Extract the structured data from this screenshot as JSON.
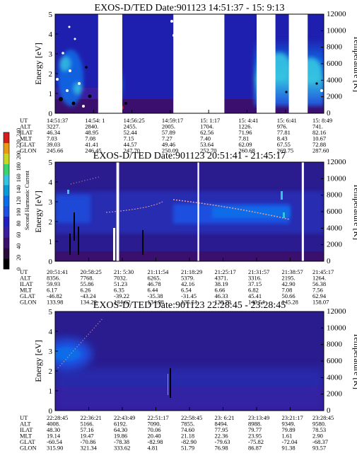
{
  "colors": {
    "background": "#1f1faf",
    "deep": "#3a0f6e",
    "spot_red": "#c81e1e",
    "gap": "#ffffff",
    "glow": "#0d6de8",
    "glow_cyan": "#35c4e0",
    "green": "#39d46b",
    "line": "#e8a0a0"
  },
  "colorbar": {
    "label": "Second Harmonic Current",
    "ticks": [
      "0",
      "20",
      "40",
      "60",
      "80",
      "100",
      "120",
      "140",
      "160",
      "180",
      "200",
      "220",
      "240"
    ],
    "colors": [
      "#000000",
      "#2a0a3a",
      "#3a0f6e",
      "#3b1ea0",
      "#2020c0",
      "#1f4fe0",
      "#0d6de8",
      "#0a9ad8",
      "#35c4e0",
      "#39d46b",
      "#c8d820",
      "#e89a10",
      "#d81c1c"
    ]
  },
  "chart_data": [
    {
      "type": "heatmap",
      "title": "EXOS-D/TED  Date:901123  14:51:37 - 15: 9:13",
      "ylabel": "Energy [eV]",
      "ylim": [
        0,
        5
      ],
      "yticks": [
        "0",
        "1",
        "2",
        "3",
        "4",
        "5"
      ],
      "y2label": "Temperature [K]",
      "y2lim": [
        0,
        12000
      ],
      "y2ticks": [
        "0",
        "2000",
        "4000",
        "6000",
        "8000",
        "10000",
        "12000"
      ],
      "time_range": [
        "14:51:37",
        "15:9:13"
      ],
      "gaps": [
        [
          0.16,
          0.25
        ],
        [
          0.44,
          0.63
        ],
        [
          0.75,
          0.82
        ],
        [
          0.87,
          0.94
        ]
      ],
      "ephemeris": {
        "labels": [
          "UT",
          "ALT",
          "ILAT",
          "MLT",
          "GLAT",
          "GLON"
        ],
        "columns": [
          [
            "14:51:37",
            "3227.",
            "46.34",
            "7.03",
            "39.03",
            "245.66"
          ],
          [
            "14:54: 1",
            "2840.",
            "48.95",
            "7.08",
            "41.41",
            "246.45"
          ],
          [
            "14:56:25",
            "2455.",
            "52.44",
            "7.15",
            "44.57",
            "247.70"
          ],
          [
            "14:59:17",
            "2005.",
            "57.89",
            "7.27",
            "49.46",
            "250.09"
          ],
          [
            "15: 1:17",
            "1704.",
            "62.56",
            "7.40",
            "53.64",
            "252.70"
          ],
          [
            "15: 4:41",
            "1226.",
            "71.96",
            "7.81",
            "62.09",
            "260.68"
          ],
          [
            "15: 6:41",
            "976.",
            "77.81",
            "8.43",
            "67.55",
            "269.75"
          ],
          [
            "15: 8:49",
            "741.",
            "82.16",
            "10.67",
            "72.88",
            "287.60"
          ]
        ]
      }
    },
    {
      "type": "heatmap",
      "title": "EXOS-D/TED  Date:901123  20:51:41 - 21:45:17",
      "ylabel": "Energy [eV]",
      "ylim": [
        0,
        5
      ],
      "yticks": [
        "0",
        "1",
        "2",
        "3",
        "4",
        "5"
      ],
      "y2label": "Temperature [K]",
      "y2lim": [
        0,
        12000
      ],
      "y2ticks": [
        "0",
        "2000",
        "4000",
        "6000",
        "8000",
        "10000",
        "12000"
      ],
      "time_range": [
        "20:51:41",
        "21:45:17"
      ],
      "gaps": [
        [
          0.228,
          0.238
        ],
        [
          0.53,
          0.536
        ],
        [
          0.918,
          0.926
        ]
      ],
      "ephemeris": {
        "labels": [
          "UT",
          "ALT",
          "ILAT",
          "MLT",
          "GLAT",
          "GLON"
        ],
        "columns": [
          [
            "20:51:41",
            "8356.",
            "59.93",
            "6.17",
            "-46.82",
            "133.98"
          ],
          [
            "20:58:25",
            "7768.",
            "55.86",
            "6.26",
            "-43.24",
            "134.29"
          ],
          [
            "21: 5:30",
            "7032.",
            "51.23",
            "6.35",
            "-39.22",
            "134.62"
          ],
          [
            "21:11:54",
            "6265.",
            "46.78",
            "6.44",
            "-35.38",
            "134.98"
          ],
          [
            "21:18:29",
            "5379.",
            "42.16",
            "6.54",
            "-31.45",
            "135.51"
          ],
          [
            "21:25:17",
            "4371.",
            "38.19",
            "6.66",
            "46.33",
            "138.79"
          ],
          [
            "21:31:57",
            "3316.",
            "37.15",
            "6.82",
            "45.41",
            "140.54"
          ],
          [
            "21:38:57",
            "2195.",
            "42.90",
            "7.08",
            "50.66",
            "145.28"
          ],
          [
            "21:45:17",
            "1264.",
            "56.38",
            "7.56",
            "62.94",
            "158.07"
          ]
        ]
      }
    },
    {
      "type": "heatmap",
      "title": "EXOS-D/TED  Date:901123  22:28:45 - 23:28:45",
      "ylabel": "Energy [eV]",
      "ylim": [
        0,
        5
      ],
      "yticks": [
        "0",
        "1",
        "2",
        "3",
        "4",
        "5"
      ],
      "y2label": "Temperature [K]",
      "y2lim": [
        0,
        12000
      ],
      "y2ticks": [
        "0",
        "2000",
        "4000",
        "6000",
        "8000",
        "10000",
        "12000"
      ],
      "time_range": [
        "22:28:45",
        "23:28:45"
      ],
      "gaps": [],
      "ephemeris": {
        "labels": [
          "UT",
          "ALT",
          "ILAT",
          "MLT",
          "GLAT",
          "GLON"
        ],
        "columns": [
          [
            "22:28:45",
            "4008.",
            "48.30",
            "19.14",
            "-60.54",
            "315.90"
          ],
          [
            "22:36:21",
            "5166.",
            "57.16",
            "19.47",
            "-70.86",
            "321.34"
          ],
          [
            "22:43:49",
            "6192.",
            "64.30",
            "19.86",
            "-78.38",
            "333.62"
          ],
          [
            "22:51:17",
            "7090.",
            "70.06",
            "20.40",
            "-82.98",
            "4.81"
          ],
          [
            "22:58:45",
            "7855.",
            "74.60",
            "21.18",
            "-82.90",
            "51.79"
          ],
          [
            "23: 6:21",
            "8494.",
            "77.95",
            "22.36",
            "-79.63",
            "76.98"
          ],
          [
            "23:13:49",
            "8988.",
            "79.77",
            "23.95",
            "-75.82",
            "86.87"
          ],
          [
            "23:21:17",
            "9349.",
            "79.89",
            "1.61",
            "-72.04",
            "91.38"
          ],
          [
            "23:28:45",
            "9580.",
            "78.53",
            "2.90",
            "-68.37",
            "93.57"
          ]
        ]
      }
    }
  ]
}
